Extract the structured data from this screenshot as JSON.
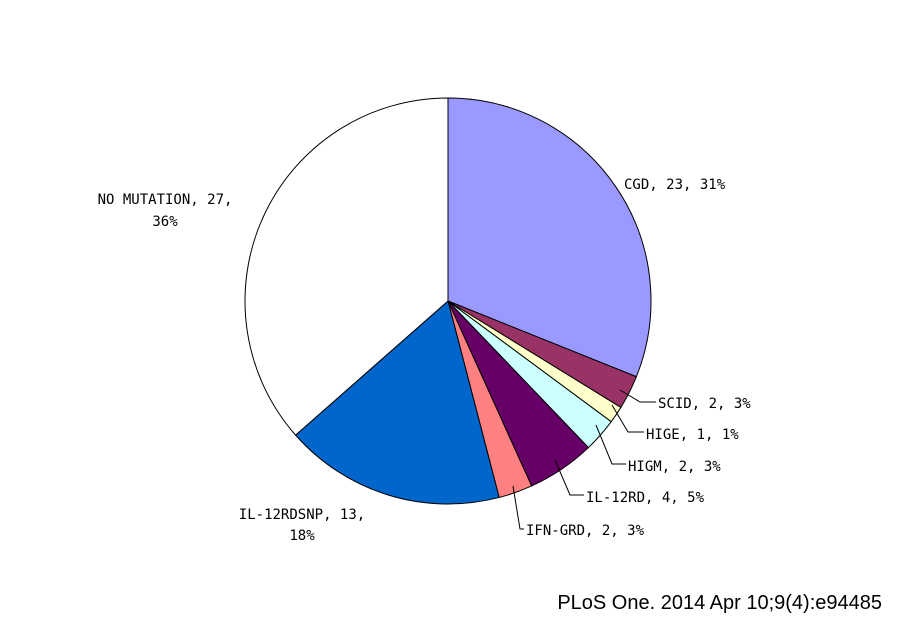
{
  "chart_data": {
    "type": "pie",
    "slices": [
      {
        "name": "CGD",
        "value": 23,
        "percent": "31%",
        "label": "CGD, 23, 31%",
        "color": "#9999ff"
      },
      {
        "name": "SCID",
        "value": 2,
        "percent": "3%",
        "label": "SCID, 2, 3%",
        "color": "#993366"
      },
      {
        "name": "HIGE",
        "value": 1,
        "percent": "1%",
        "label": "HIGE, 1, 1%",
        "color": "#ffffcc"
      },
      {
        "name": "HIGM",
        "value": 2,
        "percent": "3%",
        "label": "HIGM, 2, 3%",
        "color": "#ccffff"
      },
      {
        "name": "IL-12RD",
        "value": 4,
        "percent": "5%",
        "label": "IL-12RD, 4, 5%",
        "color": "#660066"
      },
      {
        "name": "IFN-GRD",
        "value": 2,
        "percent": "3%",
        "label": "IFN-GRD, 2, 3%",
        "color": "#ff8080"
      },
      {
        "name": "IL-12RDSNP",
        "value": 13,
        "percent": "18%",
        "label_lines": [
          "IL-12RDSNP, 13,",
          "18%"
        ],
        "color": "#0066cc"
      },
      {
        "name": "NO MUTATION",
        "value": 27,
        "percent": "36%",
        "label_lines": [
          "NO MUTATION, 27,",
          "36%"
        ],
        "color": "#ffffff"
      }
    ],
    "start_angle": "12 o'clock",
    "direction": "clockwise"
  },
  "caption": "PLoS One. 2014 Apr 10;9(4):e94485"
}
